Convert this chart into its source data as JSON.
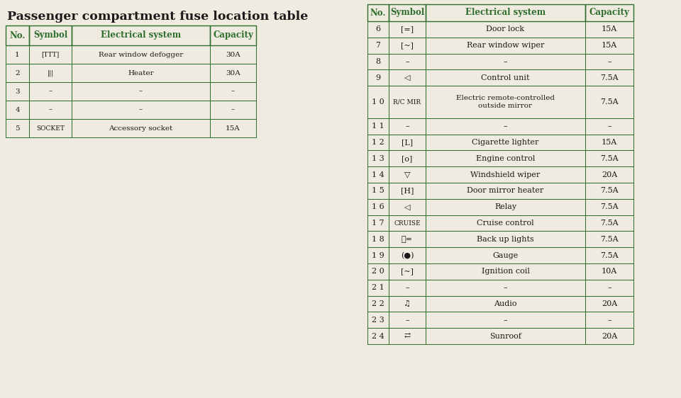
{
  "title": "Passenger compartment fuse location table",
  "title_fontsize": 12.5,
  "bg_color": "#f0ebe0",
  "border_color": "#2d6e2d",
  "text_color": "#1a1a1a",
  "header_color": "#2d6e2d",
  "table1": {
    "headers": [
      "No.",
      "Symbol",
      "Electrical system",
      "Capacity"
    ],
    "rows": [
      [
        "1",
        "[TTT]",
        "Rear window defogger",
        "30A"
      ],
      [
        "2",
        "|||",
        "Heater",
        "30A"
      ],
      [
        "3",
        "–",
        "–",
        "–"
      ],
      [
        "4",
        "–",
        "–",
        "–"
      ],
      [
        "5",
        "SOCKET",
        "Accessory socket",
        "15A"
      ]
    ]
  },
  "table2": {
    "headers": [
      "No.",
      "Symbol",
      "Electrical system",
      "Capacity"
    ],
    "rows": [
      [
        "6",
        "[=]",
        "Door lock",
        "15A"
      ],
      [
        "7",
        "[~]",
        "Rear window wiper",
        "15A"
      ],
      [
        "8",
        "–",
        "–",
        "–"
      ],
      [
        "9",
        "◁",
        "Control unit",
        "7.5A"
      ],
      [
        "1 0",
        "R/C MIR",
        "Electric remote-controlled\noutside mirror",
        "7.5A"
      ],
      [
        "1 1",
        "–",
        "–",
        "–"
      ],
      [
        "1 2",
        "[L]",
        "Cigarette lighter",
        "15A"
      ],
      [
        "1 3",
        "[o]",
        "Engine control",
        "7.5A"
      ],
      [
        "1 4",
        "▽",
        "Windshield wiper",
        "20A"
      ],
      [
        "1 5",
        "[H]",
        "Door mirror heater",
        "7.5A"
      ],
      [
        "1 6",
        "◁",
        "Relay",
        "7.5A"
      ],
      [
        "1 7",
        "CRUISE",
        "Cruise control",
        "7.5A"
      ],
      [
        "1 8",
        "Ⓡ=",
        "Back up lights",
        "7.5A"
      ],
      [
        "1 9",
        "(●)",
        "Gauge",
        "7.5A"
      ],
      [
        "2 0",
        "[~]",
        "Ignition coil",
        "10A"
      ],
      [
        "2 1",
        "–",
        "–",
        "–"
      ],
      [
        "2 2",
        "♫",
        "Audio",
        "20A"
      ],
      [
        "2 3",
        "–",
        "–",
        "–"
      ],
      [
        "2 4",
        "⇄",
        "Sunroof",
        "20A"
      ]
    ]
  }
}
